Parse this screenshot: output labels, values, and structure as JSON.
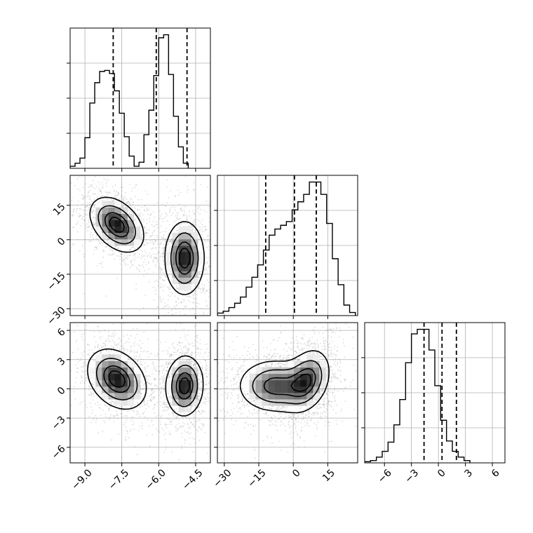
{
  "figure": {
    "type": "corner-plot",
    "background": "#ffffff",
    "frame_color": "#000000",
    "grid": true,
    "grid_color": "#b0b0b0",
    "contour_color": "#000000",
    "scatter_color": "#9a9a9a",
    "tick_labels_rotated": true
  },
  "chart_data": [
    {
      "id": "hist_p0",
      "type": "histogram",
      "panel": "row1-col1",
      "x_range": [
        -9.6,
        -3.9
      ],
      "bin_edges_from": -9.6,
      "bin_width": 0.2,
      "counts": [
        0.02,
        0.05,
        0.1,
        0.3,
        0.64,
        0.84,
        0.95,
        0.96,
        0.93,
        0.76,
        0.54,
        0.31,
        0.12,
        0.02,
        0.06,
        0.33,
        0.57,
        0.91,
        1.28,
        1.31,
        0.92,
        0.51,
        0.21,
        0.05
      ],
      "quantiles": [
        -7.85,
        -6.1,
        -4.85
      ],
      "show_y_tick_labels": false
    },
    {
      "id": "hist_p1",
      "type": "histogram",
      "panel": "row2-col2",
      "x_range": [
        -33,
        28
      ],
      "bin_edges_from": -33,
      "bin_width": 2.5,
      "counts": [
        0.04,
        0.07,
        0.13,
        0.2,
        0.3,
        0.46,
        0.62,
        0.82,
        1.06,
        1.3,
        1.4,
        1.46,
        1.52,
        1.71,
        1.84,
        1.96,
        2.16,
        2.16,
        1.96,
        1.49,
        0.92,
        0.5,
        0.17,
        0.05
      ],
      "quantiles": [
        -12,
        0.5,
        10
      ],
      "show_y_tick_labels": false
    },
    {
      "id": "hist_p2",
      "type": "histogram",
      "panel": "row3-col3",
      "x_range": [
        -8.2,
        7.4
      ],
      "bin_edges_from": -8.2,
      "bin_width": 0.65,
      "counts": [
        0.01,
        0.02,
        0.05,
        0.1,
        0.18,
        0.33,
        0.55,
        0.87,
        1.12,
        1.16,
        1.16,
        0.98,
        0.67,
        0.37,
        0.19,
        0.1,
        0.05,
        0.02
      ],
      "quantiles": [
        -1.6,
        0.4,
        2.0
      ],
      "show_y_tick_labels": false
    },
    {
      "id": "density_p0_p1",
      "type": "2d-density-contour",
      "panel": "row2-col1",
      "x": "p0",
      "y": "p1",
      "x_range": [
        -9.6,
        -3.9
      ],
      "y_range": [
        -33,
        28
      ],
      "clusters": [
        {
          "center": [
            -7.7,
            6.5
          ],
          "spread": [
            0.55,
            6.0
          ],
          "correlation": -0.4
        },
        {
          "center": [
            -4.95,
            -8
          ],
          "spread": [
            0.4,
            8.0
          ],
          "correlation": 0.0
        }
      ],
      "y_ticks": [
        -30,
        -15,
        0,
        15
      ]
    },
    {
      "id": "density_p0_p2",
      "type": "2d-density-contour",
      "panel": "row3-col1",
      "x": "p0",
      "y": "p2",
      "x_range": [
        -9.6,
        -3.9
      ],
      "y_range": [
        -7.6,
        6.8
      ],
      "clusters": [
        {
          "center": [
            -7.7,
            1.0
          ],
          "spread": [
            0.6,
            1.55
          ],
          "correlation": -0.3
        },
        {
          "center": [
            -4.95,
            0.3
          ],
          "spread": [
            0.38,
            1.55
          ],
          "correlation": 0.05
        }
      ],
      "x_ticks": [
        "-9.0",
        "-7.5",
        "-6.0",
        "-4.5"
      ],
      "y_ticks": [
        "6",
        "3",
        "0",
        "-3",
        "-6"
      ]
    },
    {
      "id": "density_p1_p2",
      "type": "2d-density-contour",
      "panel": "row3-col2",
      "x": "p1",
      "y": "p2",
      "x_range": [
        -33,
        28
      ],
      "y_range": [
        -7.6,
        6.8
      ],
      "clusters": [
        {
          "center": [
            -8,
            0.3
          ],
          "spread": [
            8.0,
            1.35
          ],
          "correlation": 0.0
        },
        {
          "center": [
            6,
            0.9
          ],
          "spread": [
            5.0,
            1.6
          ],
          "correlation": 0.3
        }
      ],
      "x_ticks": [
        "-30",
        "-15",
        "0",
        "15"
      ]
    },
    {
      "id": "axis_p2",
      "type": "axis",
      "panel": "row3-col3",
      "x_ticks": [
        "-6",
        "-3",
        "0",
        "3",
        "6"
      ]
    }
  ]
}
